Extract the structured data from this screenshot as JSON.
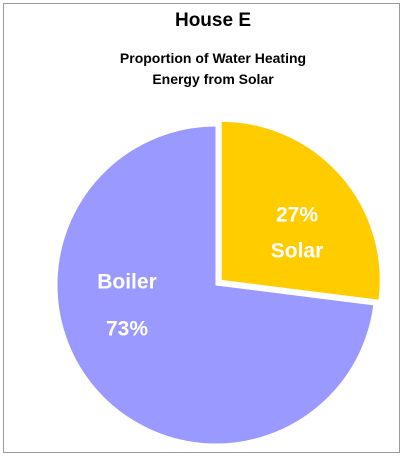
{
  "chart_data": {
    "type": "pie",
    "title": "House E",
    "subtitle": "Proportion of Water Heating Energy from Solar",
    "categories": [
      "Solar",
      "Boiler"
    ],
    "values": [
      27,
      73
    ],
    "value_labels": [
      "27%",
      "73%"
    ],
    "colors": [
      "#ffcc00",
      "#9999ff"
    ],
    "exploded": [
      true,
      false
    ]
  }
}
